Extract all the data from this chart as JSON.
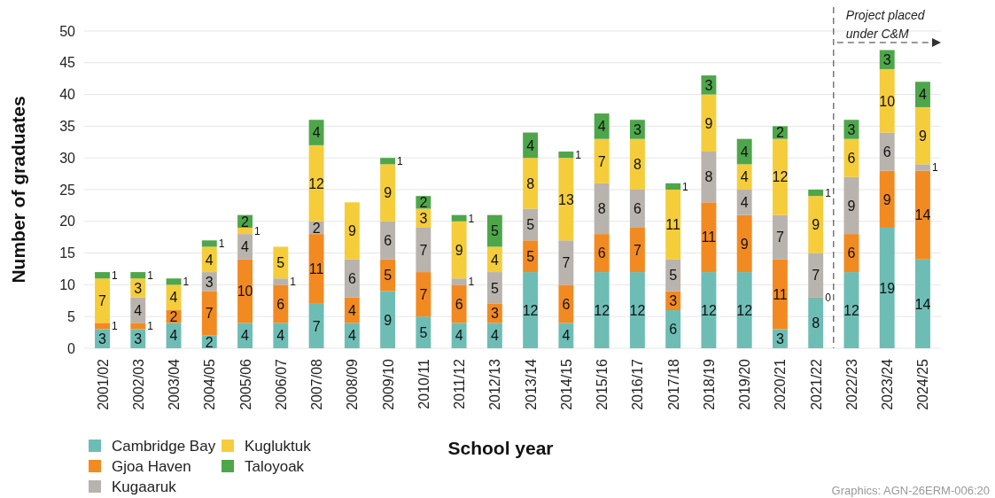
{
  "chart_data": {
    "type": "bar",
    "stacked": true,
    "xlabel": "School year",
    "ylabel": "Number of graduates",
    "categories": [
      "2001/02",
      "2002/03",
      "2003/04",
      "2004/05",
      "2005/06",
      "2006/07",
      "2007/08",
      "2008/09",
      "2009/10",
      "2010/11",
      "2011/12",
      "2012/13",
      "2013/14",
      "2014/15",
      "2015/16",
      "2016/17",
      "2017/18",
      "2018/19",
      "2019/20",
      "2020/21",
      "2021/22",
      "2022/23",
      "2023/24",
      "2024/25"
    ],
    "series": [
      {
        "name": "Cambridge Bay",
        "color": "#6dbdb5",
        "values": [
          3,
          3,
          4,
          2,
          4,
          4,
          7,
          4,
          9,
          5,
          4,
          4,
          12,
          4,
          12,
          12,
          6,
          12,
          12,
          3,
          8,
          12,
          19,
          14
        ]
      },
      {
        "name": "Gjoa Haven",
        "color": "#f28a22",
        "values": [
          1,
          1,
          2,
          7,
          10,
          6,
          11,
          4,
          5,
          7,
          6,
          3,
          5,
          6,
          6,
          7,
          3,
          11,
          9,
          11,
          0,
          6,
          9,
          14
        ]
      },
      {
        "name": "Kugaaruk",
        "color": "#b8b3ad",
        "values": [
          null,
          4,
          null,
          3,
          4,
          1,
          2,
          6,
          6,
          7,
          1,
          5,
          5,
          7,
          8,
          6,
          5,
          8,
          4,
          7,
          7,
          9,
          6,
          1
        ]
      },
      {
        "name": "Kugluktuk",
        "color": "#f5cd3b",
        "values": [
          7,
          3,
          4,
          4,
          1,
          5,
          12,
          9,
          9,
          3,
          9,
          4,
          8,
          13,
          7,
          8,
          11,
          9,
          4,
          12,
          9,
          6,
          10,
          9
        ]
      },
      {
        "name": "Taloyoak",
        "color": "#4ea64a",
        "values": [
          1,
          1,
          1,
          1,
          2,
          null,
          4,
          null,
          1,
          2,
          1,
          5,
          4,
          1,
          4,
          3,
          1,
          3,
          4,
          2,
          1,
          3,
          3,
          4
        ]
      }
    ],
    "ylim": [
      0,
      50
    ],
    "yticks": [
      0,
      5,
      10,
      15,
      20,
      25,
      30,
      35,
      40,
      45,
      50
    ],
    "grid": "y",
    "legend": "bottom left",
    "data_labels": true,
    "ref_lines": [
      {
        "axis": "x",
        "value": "2022/23",
        "label": "Project placed under C&M",
        "line_style": "dashed",
        "color": "#333333"
      }
    ],
    "annotations": [
      "Graphics: AGN-26ERM-006:20"
    ]
  }
}
